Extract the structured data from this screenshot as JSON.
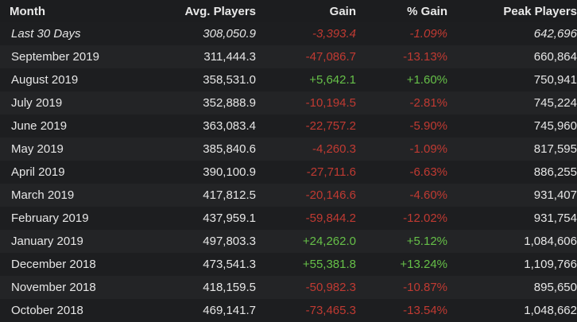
{
  "colors": {
    "background": "#1b1c1e",
    "row_alt": "#232426",
    "negative": "#c03a32",
    "positive": "#66c048",
    "text": "#e6e6e6"
  },
  "table": {
    "headers": {
      "month": "Month",
      "avg_players": "Avg. Players",
      "gain": "Gain",
      "pct_gain": "% Gain",
      "peak_players": "Peak Players"
    },
    "rows": [
      {
        "month": "Last 30 Days",
        "avg": "308,050.9",
        "gain": "-3,393.4",
        "pct": "-1.09%",
        "peak": "642,696",
        "trend": "neg",
        "italic": true
      },
      {
        "month": "September 2019",
        "avg": "311,444.3",
        "gain": "-47,086.7",
        "pct": "-13.13%",
        "peak": "660,864",
        "trend": "neg"
      },
      {
        "month": "August 2019",
        "avg": "358,531.0",
        "gain": "+5,642.1",
        "pct": "+1.60%",
        "peak": "750,941",
        "trend": "pos"
      },
      {
        "month": "July 2019",
        "avg": "352,888.9",
        "gain": "-10,194.5",
        "pct": "-2.81%",
        "peak": "745,224",
        "trend": "neg"
      },
      {
        "month": "June 2019",
        "avg": "363,083.4",
        "gain": "-22,757.2",
        "pct": "-5.90%",
        "peak": "745,960",
        "trend": "neg"
      },
      {
        "month": "May 2019",
        "avg": "385,840.6",
        "gain": "-4,260.3",
        "pct": "-1.09%",
        "peak": "817,595",
        "trend": "neg"
      },
      {
        "month": "April 2019",
        "avg": "390,100.9",
        "gain": "-27,711.6",
        "pct": "-6.63%",
        "peak": "886,255",
        "trend": "neg"
      },
      {
        "month": "March 2019",
        "avg": "417,812.5",
        "gain": "-20,146.6",
        "pct": "-4.60%",
        "peak": "931,407",
        "trend": "neg"
      },
      {
        "month": "February 2019",
        "avg": "437,959.1",
        "gain": "-59,844.2",
        "pct": "-12.02%",
        "peak": "931,754",
        "trend": "neg"
      },
      {
        "month": "January 2019",
        "avg": "497,803.3",
        "gain": "+24,262.0",
        "pct": "+5.12%",
        "peak": "1,084,606",
        "trend": "pos"
      },
      {
        "month": "December 2018",
        "avg": "473,541.3",
        "gain": "+55,381.8",
        "pct": "+13.24%",
        "peak": "1,109,766",
        "trend": "pos"
      },
      {
        "month": "November 2018",
        "avg": "418,159.5",
        "gain": "-50,982.3",
        "pct": "-10.87%",
        "peak": "895,650",
        "trend": "neg"
      },
      {
        "month": "October 2018",
        "avg": "469,141.7",
        "gain": "-73,465.3",
        "pct": "-13.54%",
        "peak": "1,048,662",
        "trend": "neg"
      }
    ]
  }
}
